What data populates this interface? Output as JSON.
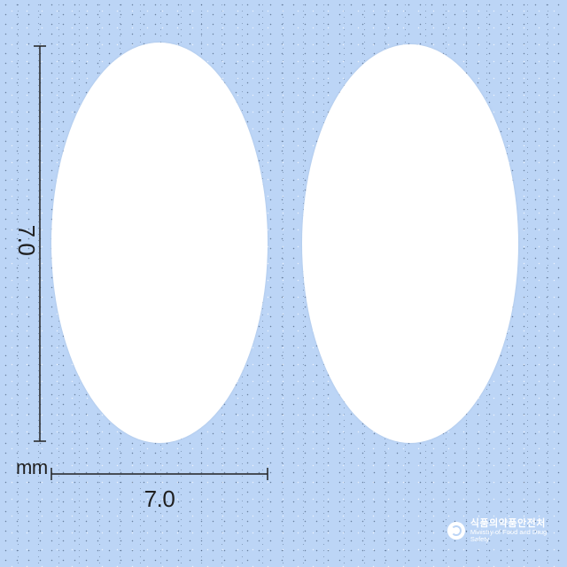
{
  "dimensions": {
    "height_value": "7.0",
    "width_value": "7.0",
    "unit": "mm"
  },
  "logo": {
    "korean": "식품의약품안전처",
    "english": "Ministry of Food and Drug Safety"
  },
  "colors": {
    "background": "#bcd5f6",
    "tablet": "#ffffff",
    "dimension_line": "#222222"
  }
}
